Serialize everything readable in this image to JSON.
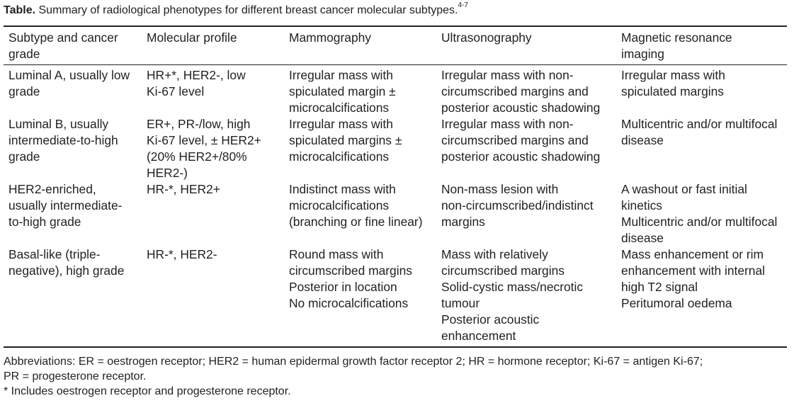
{
  "caption": {
    "label": "Table.",
    "text": " Summary of radiological phenotypes for different breast cancer molecular subtypes.",
    "ref": "4-7"
  },
  "columns": [
    [
      "Subtype and cancer",
      "grade"
    ],
    [
      "Molecular profile"
    ],
    [
      "Mammography"
    ],
    [
      "Ultrasonography"
    ],
    [
      "Magnetic resonance",
      "imaging"
    ]
  ],
  "rows": [
    [
      [
        "Luminal A, usually low",
        "grade"
      ],
      [
        "HR+*, HER2-, low",
        "Ki-67 level"
      ],
      [
        "Irregular mass with",
        "spiculated margin ±",
        "microcalcifications"
      ],
      [
        "Irregular mass with non-",
        "circumscribed margins and",
        "posterior acoustic shadowing"
      ],
      [
        "Irregular mass with",
        "spiculated margins"
      ]
    ],
    [
      [
        "Luminal B, usually",
        "intermediate-to-high",
        "grade"
      ],
      [
        "ER+, PR-/low, high",
        "Ki-67 level, ± HER2+",
        "(20% HER2+/80%",
        "HER2-)"
      ],
      [
        "Irregular mass with",
        "spiculated margins ±",
        "microcalcifications"
      ],
      [
        "Irregular mass with non-",
        "circumscribed margins and",
        "posterior acoustic shadowing"
      ],
      [
        "Multicentric and/or multifocal",
        "disease"
      ]
    ],
    [
      [
        "HER2-enriched,",
        "usually intermediate-",
        "to-high grade"
      ],
      [
        "HR-*, HER2+"
      ],
      [
        "Indistinct mass with",
        "microcalcifications",
        "(branching or fine linear)"
      ],
      [
        "Non-mass lesion with",
        "non-circumscribed/indistinct",
        "margins"
      ],
      [
        "A washout or fast initial",
        "kinetics",
        "Multicentric and/or multifocal",
        "disease"
      ]
    ],
    [
      [
        "Basal-like (triple-",
        "negative), high grade"
      ],
      [
        "HR-*, HER2-"
      ],
      [
        "Round mass with",
        "circumscribed margins",
        "Posterior in location",
        "No microcalcifications"
      ],
      [
        "Mass with relatively",
        "circumscribed margins",
        "Solid-cystic mass/necrotic",
        "tumour",
        "Posterior acoustic",
        "enhancement"
      ],
      [
        "Mass enhancement or rim",
        "enhancement with internal",
        "high T2 signal",
        "Peritumoral oedema"
      ]
    ]
  ],
  "footnotes": {
    "abbreviations": [
      "Abbreviations: ER = oestrogen receptor; HER2 = human epidermal growth factor receptor 2; HR = hormone receptor; Ki-67 = antigen Ki-67;",
      "PR = progesterone receptor."
    ],
    "asterisk": "* Includes oestrogen receptor and progesterone receptor."
  }
}
